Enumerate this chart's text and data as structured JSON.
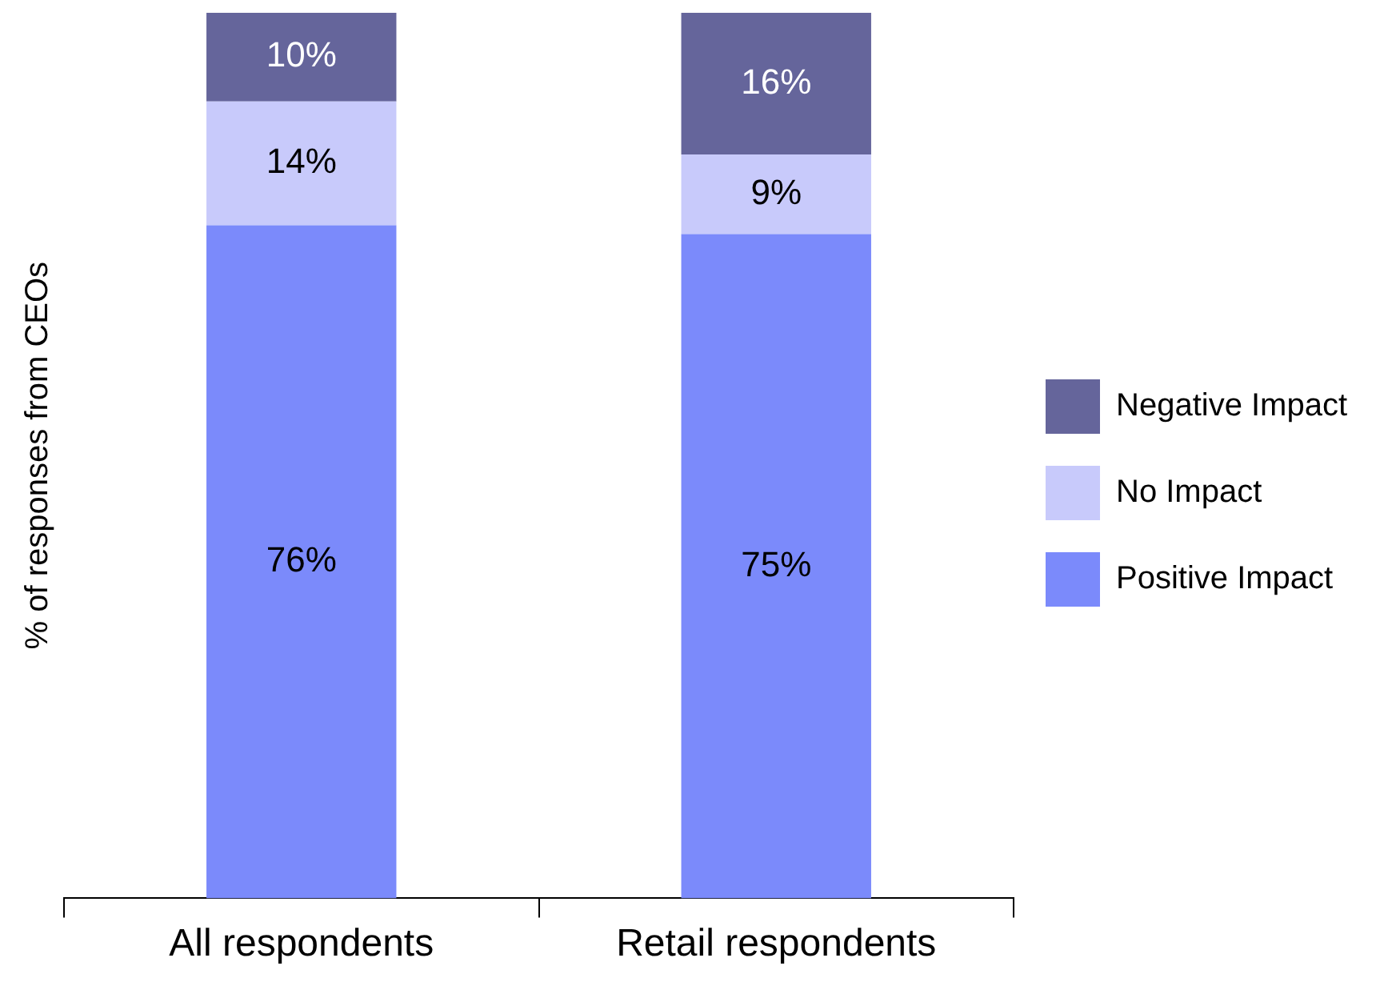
{
  "chart_data": {
    "type": "bar",
    "stacked": true,
    "ylabel": "% of responses from CEOs",
    "categories": [
      "All respondents",
      "Retail respondents"
    ],
    "tick_labels": "x",
    "legend": "right",
    "grid": false,
    "series": [
      {
        "name": "Positive Impact",
        "color": "#7b8afb",
        "values": [
          76,
          75
        ],
        "value_labels": [
          "76%",
          "75%"
        ]
      },
      {
        "name": "No Impact",
        "color": "#c8cafb",
        "values": [
          14,
          9
        ],
        "value_labels": [
          "14%",
          "9%"
        ]
      },
      {
        "name": "Negative Impact",
        "color": "#65659b",
        "values": [
          10,
          16
        ],
        "value_labels": [
          "10%",
          "16%"
        ]
      }
    ]
  }
}
